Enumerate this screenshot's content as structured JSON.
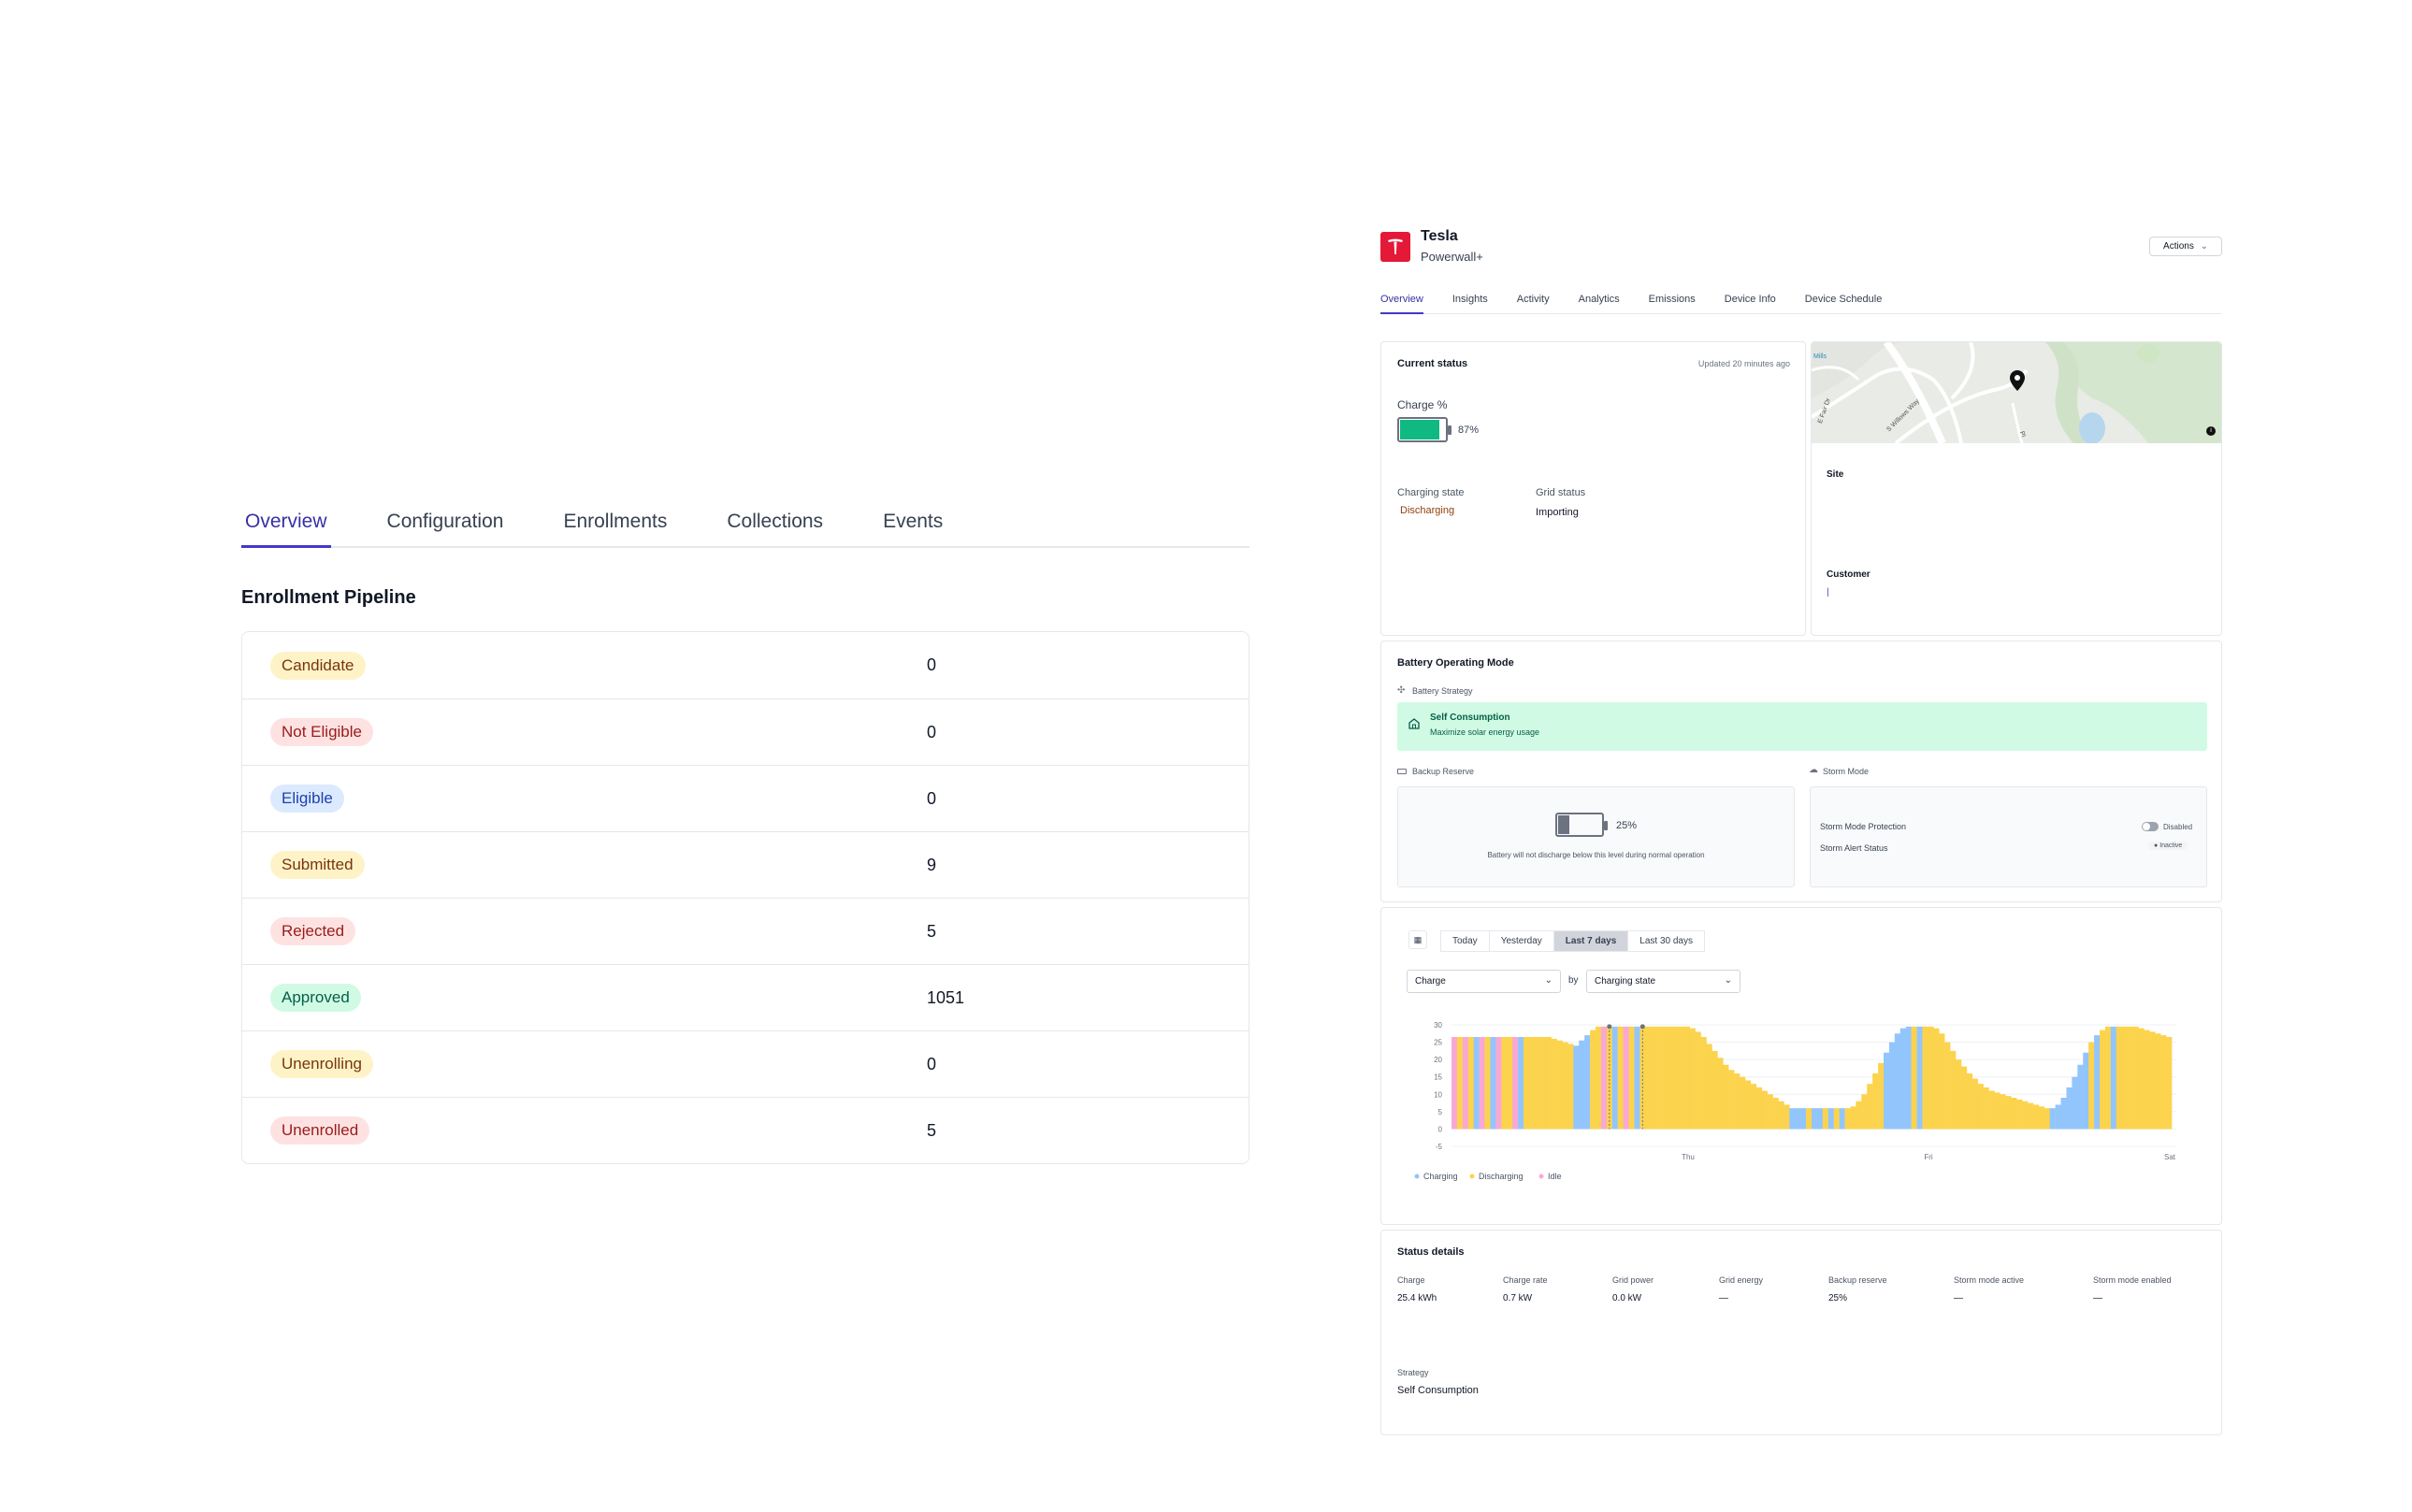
{
  "left_panel": {
    "tabs": [
      {
        "label": "Overview",
        "active": true
      },
      {
        "label": "Configuration",
        "active": false
      },
      {
        "label": "Enrollments",
        "active": false
      },
      {
        "label": "Collections",
        "active": false
      },
      {
        "label": "Events",
        "active": false
      }
    ],
    "pipeline_title": "Enrollment Pipeline",
    "pipeline": [
      {
        "status": "Candidate",
        "count": "0",
        "color": "yellow"
      },
      {
        "status": "Not Eligible",
        "count": "0",
        "color": "red"
      },
      {
        "status": "Eligible",
        "count": "0",
        "color": "blue"
      },
      {
        "status": "Submitted",
        "count": "9",
        "color": "yellow"
      },
      {
        "status": "Rejected",
        "count": "5",
        "color": "red"
      },
      {
        "status": "Approved",
        "count": "1051",
        "color": "green"
      },
      {
        "status": "Unenrolling",
        "count": "0",
        "color": "yellow"
      },
      {
        "status": "Unenrolled",
        "count": "5",
        "color": "red"
      }
    ]
  },
  "device": {
    "brand": "Tesla",
    "model": "Powerwall+",
    "brand_color": "#e31937",
    "actions_label": "Actions",
    "tabs": [
      {
        "label": "Overview",
        "active": true
      },
      {
        "label": "Insights",
        "active": false
      },
      {
        "label": "Activity",
        "active": false
      },
      {
        "label": "Analytics",
        "active": false
      },
      {
        "label": "Emissions",
        "active": false
      },
      {
        "label": "Device Info",
        "active": false
      },
      {
        "label": "Device Schedule",
        "active": false
      }
    ],
    "current_status": {
      "title": "Current status",
      "updated": "Updated 20 minutes ago",
      "charge_label": "Charge %",
      "charge_value": "87%",
      "charge_fraction": 0.87,
      "charging_state_label": "Charging state",
      "charging_state_value": "Discharging",
      "grid_status_label": "Grid status",
      "grid_status_value": "Importing"
    },
    "site": {
      "site_label": "Site",
      "customer_label": "Customer",
      "customer_value": "|",
      "map_labels": [
        "Mills",
        "E Fair Dr",
        "S Willows Way",
        "Pl"
      ]
    },
    "battery_mode": {
      "title": "Battery Operating Mode",
      "strategy_label": "Battery Strategy",
      "strategy_name": "Self Consumption",
      "strategy_desc": "Maximize solar energy usage",
      "backup_label": "Backup Reserve",
      "backup_value": "25%",
      "backup_fraction": 0.25,
      "backup_note": "Battery will not discharge below this level during normal operation",
      "storm_label": "Storm Mode",
      "storm_protection_label": "Storm Mode Protection",
      "storm_protection_value": "Disabled",
      "storm_alert_label": "Storm Alert Status",
      "storm_alert_value": "Inactive"
    },
    "chart_controls": {
      "ranges": [
        {
          "label": "Today",
          "active": false
        },
        {
          "label": "Yesterday",
          "active": false
        },
        {
          "label": "Last 7 days",
          "active": true
        },
        {
          "label": "Last 30 days",
          "active": false
        }
      ],
      "metric": "Charge",
      "by_label": "by",
      "group": "Charging state"
    },
    "status_details": {
      "title": "Status details",
      "fields": [
        {
          "label": "Charge",
          "value": "25.4 kWh"
        },
        {
          "label": "Charge rate",
          "value": "0.7 kW"
        },
        {
          "label": "Grid power",
          "value": "0.0 kW"
        },
        {
          "label": "Grid energy",
          "value": "—"
        },
        {
          "label": "Backup reserve",
          "value": "25%"
        },
        {
          "label": "Storm mode active",
          "value": "—"
        },
        {
          "label": "Storm mode enabled",
          "value": "—"
        }
      ],
      "strategy_label": "Strategy",
      "strategy_value": "Self Consumption"
    }
  },
  "chart_data": {
    "type": "bar",
    "x_tick_labels": [
      "Thu",
      "Fri",
      "Sat"
    ],
    "ylim": [
      -5,
      30
    ],
    "y_ticks": [
      30,
      25,
      20,
      15,
      10,
      5,
      0,
      -5
    ],
    "grid": true,
    "legend_position": "bottom-left",
    "series": [
      {
        "name": "Charging",
        "color": "#93c5fd"
      },
      {
        "name": "Discharging",
        "color": "#fcd34d"
      },
      {
        "name": "Idle",
        "color": "#f9a8d4"
      }
    ],
    "values": [
      26.5,
      26.5,
      26.5,
      26.5,
      26.5,
      26.5,
      26.5,
      26.5,
      26.5,
      26.5,
      26.5,
      26.5,
      26.5,
      26.5,
      26.5,
      26.5,
      26.5,
      26.5,
      26.0,
      25.5,
      25.0,
      24.5,
      24.0,
      25.5,
      27.0,
      28.5,
      29.5,
      29.5,
      29.5,
      29.5,
      29.5,
      29.5,
      29.5,
      29.5,
      29.5,
      29.5,
      29.5,
      29.5,
      29.5,
      29.5,
      29.5,
      29.5,
      29.5,
      29.0,
      28.0,
      26.5,
      24.5,
      22.5,
      20.5,
      18.5,
      17.0,
      16.0,
      15.0,
      14.0,
      13.0,
      12.0,
      11.0,
      10.0,
      9.0,
      8.0,
      7.0,
      6.0,
      6.0,
      6.0,
      6.0,
      6.0,
      6.0,
      6.0,
      6.0,
      6.0,
      6.0,
      6.0,
      6.5,
      8.0,
      10.0,
      13.0,
      16.0,
      19.0,
      22.0,
      25.0,
      27.5,
      29.0,
      29.5,
      29.5,
      29.5,
      29.5,
      29.5,
      29.0,
      27.5,
      25.0,
      22.5,
      20.0,
      18.0,
      16.0,
      14.5,
      13.0,
      12.0,
      11.0,
      10.5,
      10.0,
      9.5,
      9.0,
      8.5,
      8.0,
      7.5,
      7.0,
      6.5,
      6.0,
      6.0,
      7.0,
      9.0,
      12.0,
      15.0,
      18.5,
      22.0,
      25.0,
      27.0,
      28.5,
      29.5,
      29.5,
      29.5,
      29.5,
      29.5,
      29.5,
      29.0,
      28.5,
      28.0,
      27.5,
      27.0,
      26.5
    ],
    "states": [
      "I",
      "D",
      "I",
      "D",
      "C",
      "I",
      "D",
      "C",
      "I",
      "D",
      "D",
      "I",
      "C",
      "D",
      "D",
      "D",
      "D",
      "D",
      "D",
      "D",
      "D",
      "D",
      "C",
      "C",
      "C",
      "D",
      "D",
      "I",
      "D",
      "C",
      "D",
      "I",
      "D",
      "C",
      "D",
      "D",
      "D",
      "D",
      "D",
      "D",
      "D",
      "D",
      "D",
      "D",
      "D",
      "D",
      "D",
      "D",
      "D",
      "D",
      "D",
      "D",
      "D",
      "D",
      "D",
      "D",
      "D",
      "D",
      "D",
      "D",
      "D",
      "C",
      "C",
      "C",
      "D",
      "C",
      "C",
      "D",
      "C",
      "D",
      "C",
      "D",
      "D",
      "D",
      "D",
      "D",
      "D",
      "D",
      "C",
      "C",
      "C",
      "C",
      "C",
      "D",
      "C",
      "D",
      "D",
      "D",
      "D",
      "D",
      "D",
      "D",
      "D",
      "D",
      "D",
      "D",
      "D",
      "D",
      "D",
      "D",
      "D",
      "D",
      "D",
      "D",
      "D",
      "D",
      "D",
      "D",
      "C",
      "C",
      "C",
      "C",
      "C",
      "C",
      "C",
      "D",
      "C",
      "D",
      "D",
      "C",
      "D",
      "D",
      "D",
      "D",
      "D",
      "D",
      "D",
      "D",
      "D"
    ],
    "markers": [
      28,
      34
    ]
  }
}
